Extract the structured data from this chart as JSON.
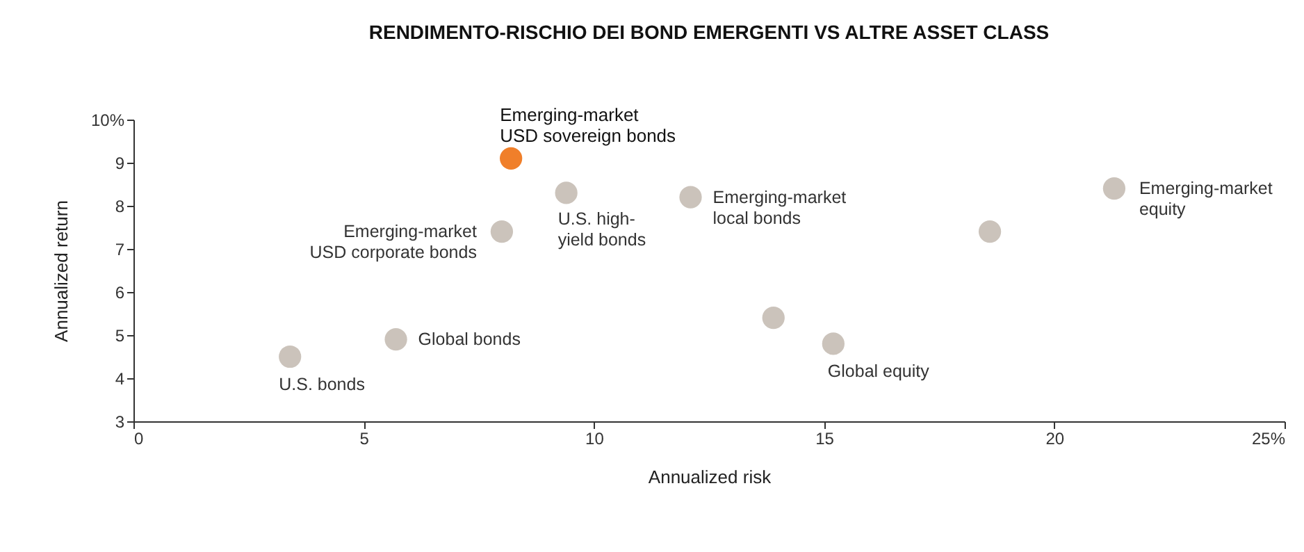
{
  "chart_data": {
    "type": "scatter",
    "title": "RENDIMENTO-RISCHIO DEI BOND EMERGENTI VS ALTRE ASSET CLASS",
    "xlabel": "Annualized risk",
    "ylabel": "Annualized return",
    "x": [
      8.2,
      9.4,
      12.1,
      8.0,
      21.3,
      18.6,
      13.9,
      15.2,
      5.7,
      3.4
    ],
    "series": [
      {
        "values": [
          9.1,
          8.3,
          8.2,
          7.4,
          8.4,
          7.4,
          5.4,
          4.8,
          4.9,
          4.5
        ],
        "colors": [
          "#f07f2a",
          "#cbc3bb",
          "#cbc3bb",
          "#cbc3bb",
          "#cbc3bb",
          "#cbc3bb",
          "#cbc3bb",
          "#cbc3bb",
          "#cbc3bb",
          "#cbc3bb"
        ]
      }
    ],
    "annotations": [
      {
        "text": "Emerging-market\nUSD sovereign bonds",
        "x": 8.2,
        "y": 9.1
      },
      {
        "text": "U.S. high-\nyield bonds",
        "x": 9.4,
        "y": 8.3
      },
      {
        "text": "Emerging-market\nlocal bonds",
        "x": 12.1,
        "y": 8.2
      },
      {
        "text": "Emerging-market\nUSD corporate bonds",
        "x": 8.0,
        "y": 7.4
      },
      {
        "text": "Emerging-market\nequity",
        "x": 21.3,
        "y": 8.4
      },
      {
        "text": "Global equity",
        "x": 15.2,
        "y": 4.8
      },
      {
        "text": "Global bonds",
        "x": 5.7,
        "y": 4.9
      },
      {
        "text": "U.S. bonds",
        "x": 3.4,
        "y": 4.5
      }
    ],
    "xlim": [
      0,
      25
    ],
    "xticks": [
      0,
      5,
      10,
      15,
      20,
      {
        "value": 25,
        "label": "25%"
      }
    ],
    "ylim": [
      3,
      10
    ],
    "yticks": [
      3,
      4,
      5,
      6,
      7,
      8,
      9,
      {
        "value": 10,
        "label": "10%"
      }
    ],
    "grid": false,
    "marker": "circle"
  }
}
